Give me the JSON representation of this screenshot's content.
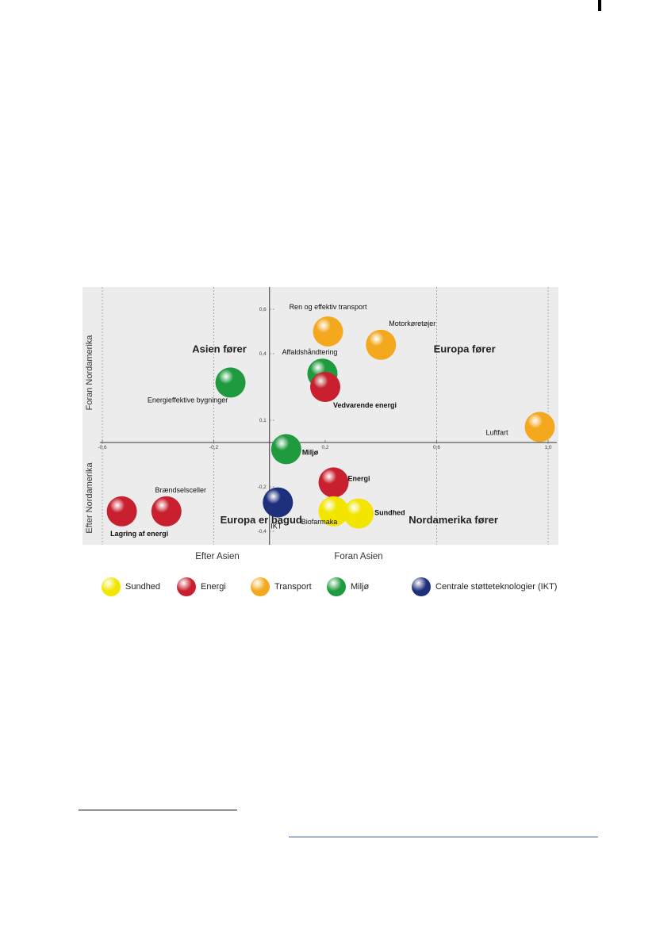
{
  "chart_data": {
    "type": "scatter",
    "title": "",
    "xlabel": "",
    "ylabel": "",
    "xlim": [
      -0.6,
      1.0
    ],
    "ylim": [
      -0.45,
      0.75
    ],
    "x_ticks": [
      {
        "value": -0.6,
        "label": "-0,6"
      },
      {
        "value": -0.2,
        "label": "-0,2"
      },
      {
        "value": 0.2,
        "label": "0,2"
      },
      {
        "value": 0.6,
        "label": "0,6"
      },
      {
        "value": 1.0,
        "label": "1,0"
      }
    ],
    "y_ticks": [
      {
        "value": 0.6,
        "label": "0,6"
      },
      {
        "value": 0.4,
        "label": "0,4"
      },
      {
        "value": 0.1,
        "label": "0,1"
      },
      {
        "value": -0.2,
        "label": "-0,2"
      },
      {
        "value": -0.4,
        "label": "-0,4"
      }
    ],
    "dashed_x": [
      -0.6,
      -0.2,
      0.6,
      1.0
    ],
    "dashed_y": [
      0.6,
      0.4,
      0.1,
      -0.2,
      -0.4
    ],
    "axis_titles": {
      "left_top": "Foran Nordamerika",
      "left_bottom": "Efter Nordamerika",
      "bottom_left": "Efter Asien",
      "bottom_right": "Foran Asien"
    },
    "quadrant_labels": [
      {
        "text": "Asien fører",
        "x": -0.18,
        "y": 0.42
      },
      {
        "text": "Europa fører",
        "x": 0.7,
        "y": 0.42
      },
      {
        "text": "Europa er bagud",
        "x": -0.03,
        "y": -0.35
      },
      {
        "text": "Nordamerika  fører",
        "x": 0.66,
        "y": -0.35
      }
    ],
    "categories": [
      {
        "name": "Sundhed",
        "color": "#f2e600"
      },
      {
        "name": "Energi",
        "color": "#c8202f"
      },
      {
        "name": "Transport",
        "color": "#f3a81d"
      },
      {
        "name": "Miljø",
        "color": "#1f9a3e"
      },
      {
        "name": "Centrale støtteteknologier (IKT)",
        "color": "#1e2f7c"
      }
    ],
    "points": [
      {
        "label": "Ren og effektiv transport",
        "category": "Transport",
        "x": 0.21,
        "y": 0.5
      },
      {
        "label": "Motorkøretøjer",
        "category": "Transport",
        "x": 0.4,
        "y": 0.44
      },
      {
        "label": "Luftfart",
        "category": "Transport",
        "x": 0.97,
        "y": 0.07
      },
      {
        "label": "Affaldshåndtering",
        "category": "Miljø",
        "x": 0.19,
        "y": 0.31
      },
      {
        "label": "Vedvarende energi",
        "category": "Energi",
        "x": 0.2,
        "y": 0.25
      },
      {
        "label": "Energieffektive bygninger",
        "category": "Miljø",
        "x": -0.14,
        "y": 0.27
      },
      {
        "label": "Miljø",
        "category": "Miljø",
        "x": 0.06,
        "y": -0.03
      },
      {
        "label": "Energi",
        "category": "Energi",
        "x": 0.23,
        "y": -0.18
      },
      {
        "label": "IKT",
        "category": "Centrale støtteteknologier (IKT)",
        "x": 0.03,
        "y": -0.27
      },
      {
        "label": "Biofarmaka",
        "category": "Sundhed",
        "x": 0.23,
        "y": -0.31
      },
      {
        "label": "Sundhed",
        "category": "Sundhed",
        "x": 0.32,
        "y": -0.32
      },
      {
        "label": "Brændselsceller",
        "category": "Energi",
        "x": -0.37,
        "y": -0.31
      },
      {
        "label": "Lagring af energi",
        "category": "Energi",
        "x": -0.53,
        "y": -0.31
      }
    ]
  }
}
